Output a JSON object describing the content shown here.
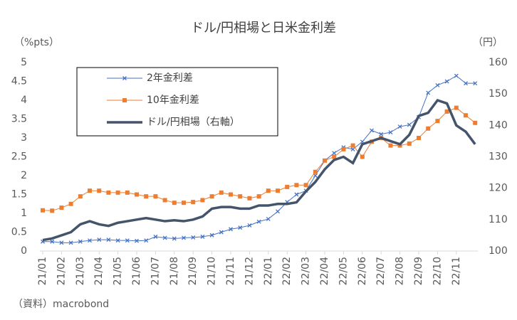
{
  "chart_data": {
    "type": "line",
    "title": "ドル/円相場と日米金利差",
    "y_label": "（%pts）",
    "y2_label": "（円）",
    "note": "（資料）macrobond",
    "categories": [
      "21/01",
      null,
      "21/02",
      null,
      "21/03",
      null,
      "21/04",
      null,
      "21/05",
      null,
      "21/06",
      null,
      "21/07",
      null,
      "21/08",
      null,
      "21/09",
      null,
      "21/10",
      null,
      "21/11",
      null,
      "21/12",
      null,
      "22/01",
      null,
      "22/02",
      null,
      "22/03",
      null,
      "22/04",
      null,
      "22/05",
      null,
      "22/06",
      null,
      "22/07",
      null,
      "22/08",
      null,
      "22/09",
      null,
      "22/10",
      null,
      "22/11",
      null,
      null
    ],
    "ylim": [
      0,
      5
    ],
    "yticks": [
      0,
      0.5,
      1,
      1.5,
      2,
      2.5,
      3,
      3.5,
      4,
      4.5,
      5
    ],
    "y2lim": [
      100,
      160
    ],
    "y2ticks": [
      100,
      110,
      120,
      130,
      140,
      150,
      160
    ],
    "series": [
      {
        "name": "2年金利差",
        "color": "#4472c4",
        "marker": "x",
        "values": [
          0.25,
          0.25,
          0.22,
          0.22,
          0.25,
          0.28,
          0.3,
          0.3,
          0.28,
          0.28,
          0.27,
          0.28,
          0.38,
          0.35,
          0.33,
          0.35,
          0.36,
          0.38,
          0.42,
          0.5,
          0.58,
          0.62,
          0.68,
          0.78,
          0.85,
          1.05,
          1.3,
          1.5,
          1.6,
          2.0,
          2.4,
          2.6,
          2.75,
          2.7,
          2.9,
          3.2,
          3.1,
          3.15,
          3.3,
          3.35,
          3.55,
          4.2,
          4.4,
          4.5,
          4.65,
          4.45,
          4.45
        ]
      },
      {
        "name": "10年金利差",
        "color": "#ed7d31",
        "marker": "square",
        "values": [
          1.08,
          1.07,
          1.15,
          1.25,
          1.45,
          1.6,
          1.6,
          1.55,
          1.55,
          1.55,
          1.5,
          1.45,
          1.45,
          1.35,
          1.28,
          1.28,
          1.3,
          1.35,
          1.45,
          1.55,
          1.5,
          1.45,
          1.4,
          1.45,
          1.6,
          1.6,
          1.7,
          1.75,
          1.75,
          2.1,
          2.4,
          2.5,
          2.7,
          2.8,
          2.5,
          2.9,
          3.0,
          2.8,
          2.8,
          2.85,
          3.0,
          3.25,
          3.45,
          3.7,
          3.8,
          3.6,
          3.4
        ]
      },
      {
        "name": "ドル/円相場（右軸）",
        "color": "#44546a",
        "axis": "y2",
        "values": [
          103.5,
          104,
          105,
          106,
          108.5,
          109.5,
          108.5,
          108,
          109,
          109.5,
          110,
          110.5,
          110,
          109.5,
          109.8,
          109.5,
          110,
          111,
          113.5,
          114,
          114,
          113.5,
          113.5,
          114.5,
          114.5,
          115,
          115,
          115.5,
          119,
          122,
          126,
          129,
          130,
          128,
          134,
          135,
          136,
          135,
          134,
          137,
          143,
          144,
          148,
          147,
          140,
          138,
          134
        ]
      }
    ]
  }
}
